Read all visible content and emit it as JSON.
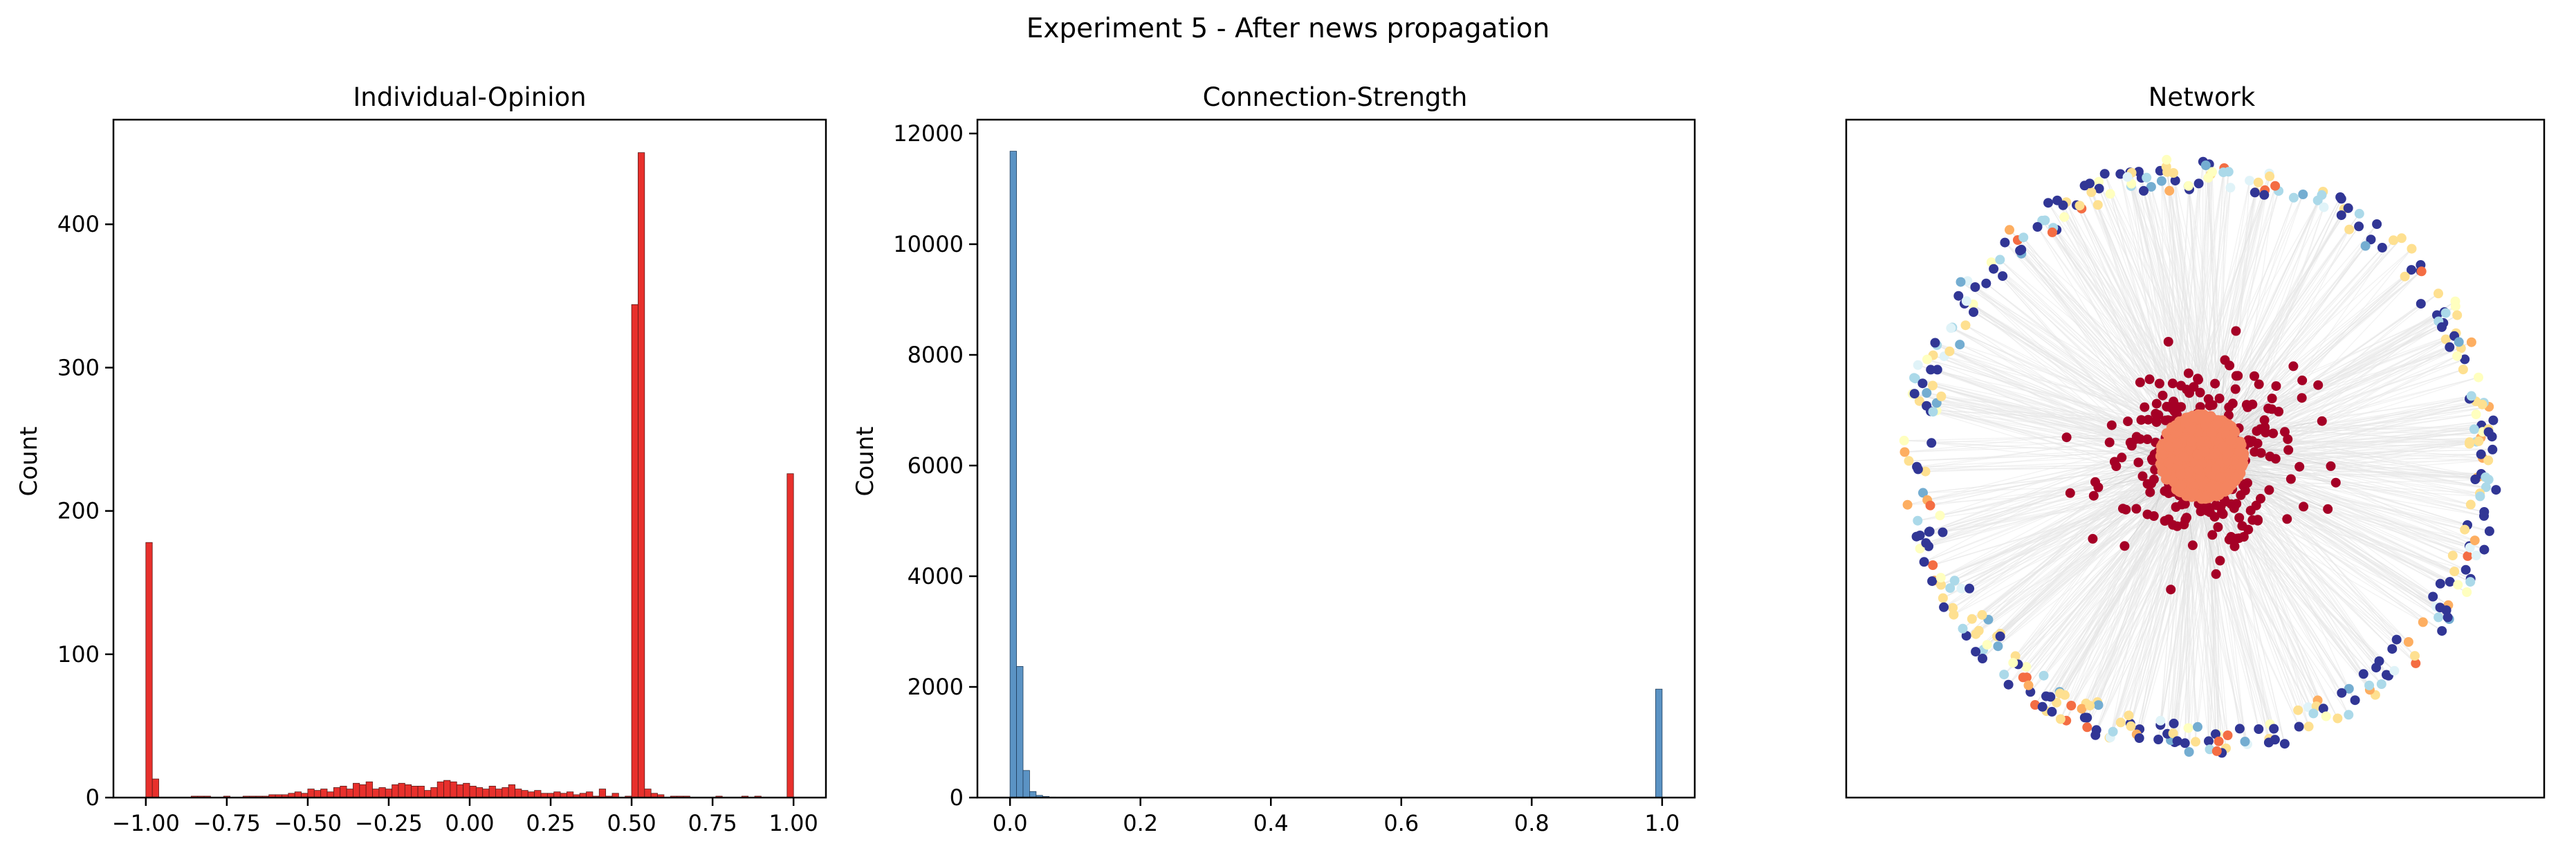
{
  "figure": {
    "suptitle": "Experiment 5 - After news propagation"
  },
  "chart_data": [
    {
      "type": "bar",
      "title": "Individual-Opinion",
      "xlabel": "",
      "ylabel": "Count",
      "xlim": [
        -1.1,
        1.1
      ],
      "ylim": [
        0,
        473
      ],
      "xticks": [
        -1.0,
        -0.75,
        -0.5,
        -0.25,
        0.0,
        0.25,
        0.5,
        0.75,
        1.0
      ],
      "xtick_labels": [
        "−1.00",
        "−0.75",
        "−0.50",
        "−0.25",
        "0.00",
        "0.25",
        "0.50",
        "0.75",
        "1.00"
      ],
      "yticks": [
        0,
        100,
        200,
        300,
        400
      ],
      "ytick_labels": [
        "0",
        "100",
        "200",
        "300",
        "400"
      ],
      "bin_start": -1.0,
      "bin_width": 0.02,
      "values": [
        178,
        13,
        0,
        0,
        0,
        0,
        0,
        1,
        1,
        1,
        0,
        0,
        1,
        0,
        0,
        1,
        1,
        1,
        1,
        2,
        2,
        2,
        3,
        4,
        3,
        6,
        5,
        6,
        4,
        7,
        8,
        6,
        10,
        9,
        11,
        6,
        7,
        6,
        9,
        10,
        9,
        8,
        8,
        5,
        7,
        11,
        12,
        11,
        9,
        10,
        8,
        7,
        6,
        8,
        6,
        7,
        9,
        6,
        5,
        4,
        5,
        3,
        3,
        4,
        3,
        4,
        2,
        3,
        4,
        1,
        6,
        1,
        3,
        0,
        1,
        344,
        450,
        6,
        3,
        2,
        0,
        1,
        1,
        1,
        0,
        0,
        0,
        0,
        1,
        0,
        0,
        0,
        1,
        0,
        1,
        0,
        0,
        0,
        0,
        226
      ],
      "color": "#e8302c",
      "edgecolor": "#5a1a18"
    },
    {
      "type": "bar",
      "title": "Connection-Strength",
      "xlabel": "",
      "ylabel": "Count",
      "xlim": [
        -0.05,
        1.05
      ],
      "ylim": [
        0,
        12250
      ],
      "xticks": [
        0.0,
        0.2,
        0.4,
        0.6,
        0.8,
        1.0
      ],
      "xtick_labels": [
        "0.0",
        "0.2",
        "0.4",
        "0.6",
        "0.8",
        "1.0"
      ],
      "yticks": [
        0,
        2000,
        4000,
        6000,
        8000,
        10000,
        12000
      ],
      "ytick_labels": [
        "0",
        "2000",
        "4000",
        "6000",
        "8000",
        "10000",
        "12000"
      ],
      "bin_start": 0.0,
      "bin_width": 0.01,
      "values": [
        11680,
        2370,
        490,
        110,
        40,
        20,
        8,
        4,
        2,
        2,
        0,
        0,
        0,
        0,
        0,
        0,
        0,
        0,
        0,
        0,
        0,
        0,
        0,
        0,
        0,
        0,
        0,
        0,
        0,
        0,
        0,
        0,
        0,
        0,
        0,
        0,
        0,
        0,
        0,
        0,
        0,
        0,
        0,
        0,
        0,
        0,
        0,
        0,
        0,
        0,
        0,
        0,
        0,
        0,
        0,
        0,
        0,
        0,
        0,
        0,
        0,
        0,
        0,
        0,
        0,
        0,
        0,
        0,
        0,
        0,
        0,
        0,
        0,
        0,
        0,
        0,
        0,
        0,
        0,
        0,
        0,
        0,
        0,
        0,
        0,
        0,
        0,
        0,
        0,
        0,
        0,
        0,
        0,
        0,
        0,
        0,
        0,
        0,
        0,
        1960
      ],
      "color": "#5b93c4",
      "edgecolor": "#1f3d5c"
    },
    {
      "type": "scatter",
      "title": "Network",
      "xlabel": "",
      "ylabel": "",
      "axes_visible": false,
      "groups": [
        {
          "radius_range": [
            0.82,
            0.92
          ],
          "count": 380,
          "color_weights": [
            [
              "#313695",
              0.36
            ],
            [
              "#fee090",
              0.18
            ],
            [
              "#ffffbf",
              0.1
            ],
            [
              "#abd9e9",
              0.14
            ],
            [
              "#74add1",
              0.06
            ],
            [
              "#fdae61",
              0.06
            ],
            [
              "#f46d43",
              0.06
            ],
            [
              "#e0f3f8",
              0.04
            ]
          ]
        },
        {
          "radius_range": [
            0.0,
            0.42
          ],
          "count": 420,
          "color_weights": [
            [
              "#a50026",
              1.0
            ]
          ]
        },
        {
          "radius_range": [
            0.0,
            0.13
          ],
          "count": 900,
          "color_weights": [
            [
              "#f4845f",
              1.0
            ]
          ]
        }
      ],
      "edge_color": "#e6e6e6"
    }
  ]
}
